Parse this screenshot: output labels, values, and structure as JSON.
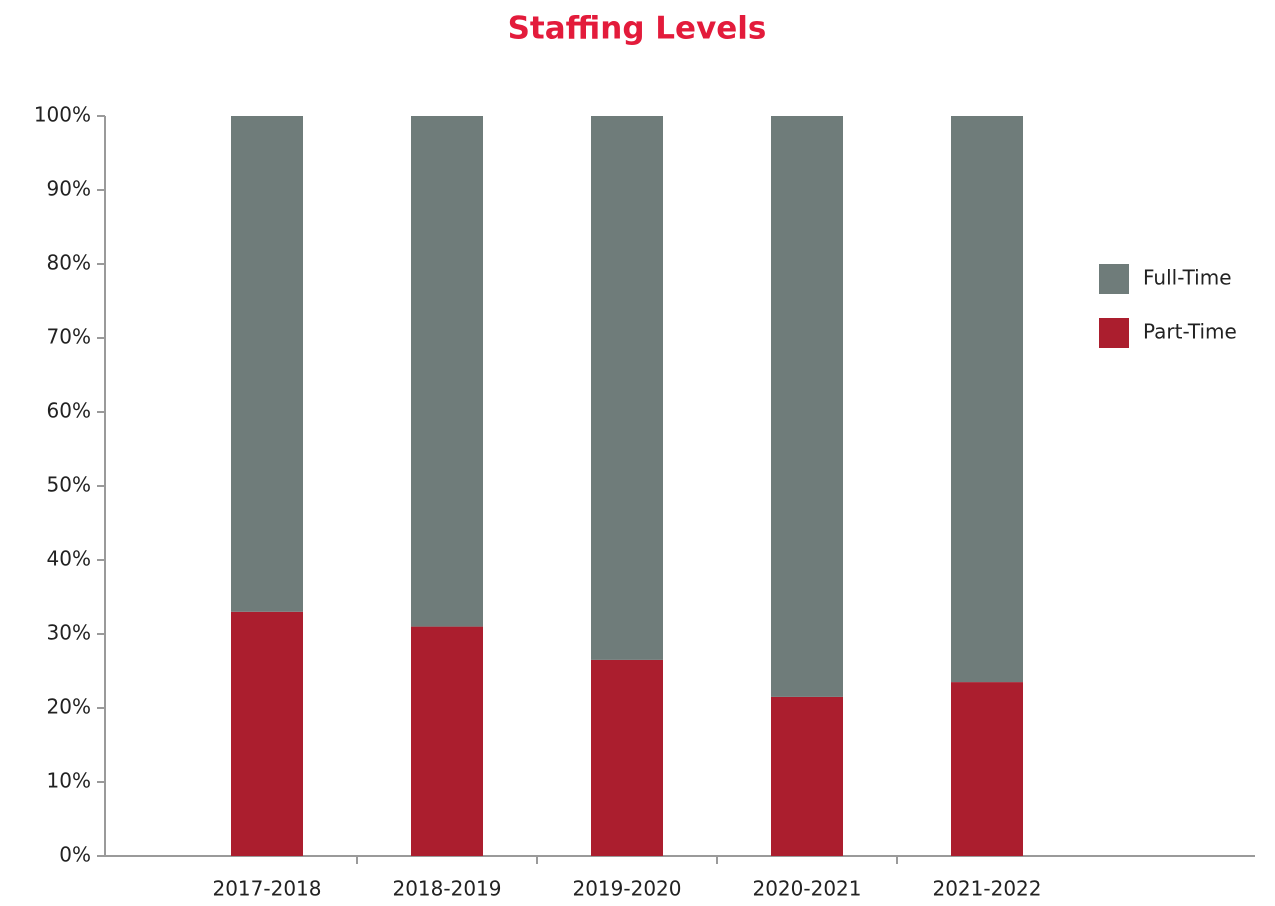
{
  "chart_data": {
    "type": "stacked_bar",
    "title": "Staffing Levels",
    "categories": [
      "2017-2018",
      "2018-2019",
      "2019-2020",
      "2020-2021",
      "2021-2022"
    ],
    "series": [
      {
        "name": "Part-Time",
        "color": "#ab1e2e",
        "values": [
          33,
          31,
          26.5,
          21.5,
          23.5
        ]
      },
      {
        "name": "Full-Time",
        "color": "#6f7c7a",
        "values": [
          67,
          69,
          73.5,
          78.5,
          76.5
        ]
      }
    ],
    "ylim": [
      0,
      100
    ],
    "yticks": [
      {
        "value": 0,
        "label": "0%"
      },
      {
        "value": 10,
        "label": "10%"
      },
      {
        "value": 20,
        "label": "20%"
      },
      {
        "value": 30,
        "label": "30%"
      },
      {
        "value": 40,
        "label": "40%"
      },
      {
        "value": 50,
        "label": "50%"
      },
      {
        "value": 60,
        "label": "60%"
      },
      {
        "value": 70,
        "label": "70%"
      },
      {
        "value": 80,
        "label": "80%"
      },
      {
        "value": 90,
        "label": "90%"
      },
      {
        "value": 100,
        "label": "100%"
      }
    ],
    "legend": "right"
  }
}
